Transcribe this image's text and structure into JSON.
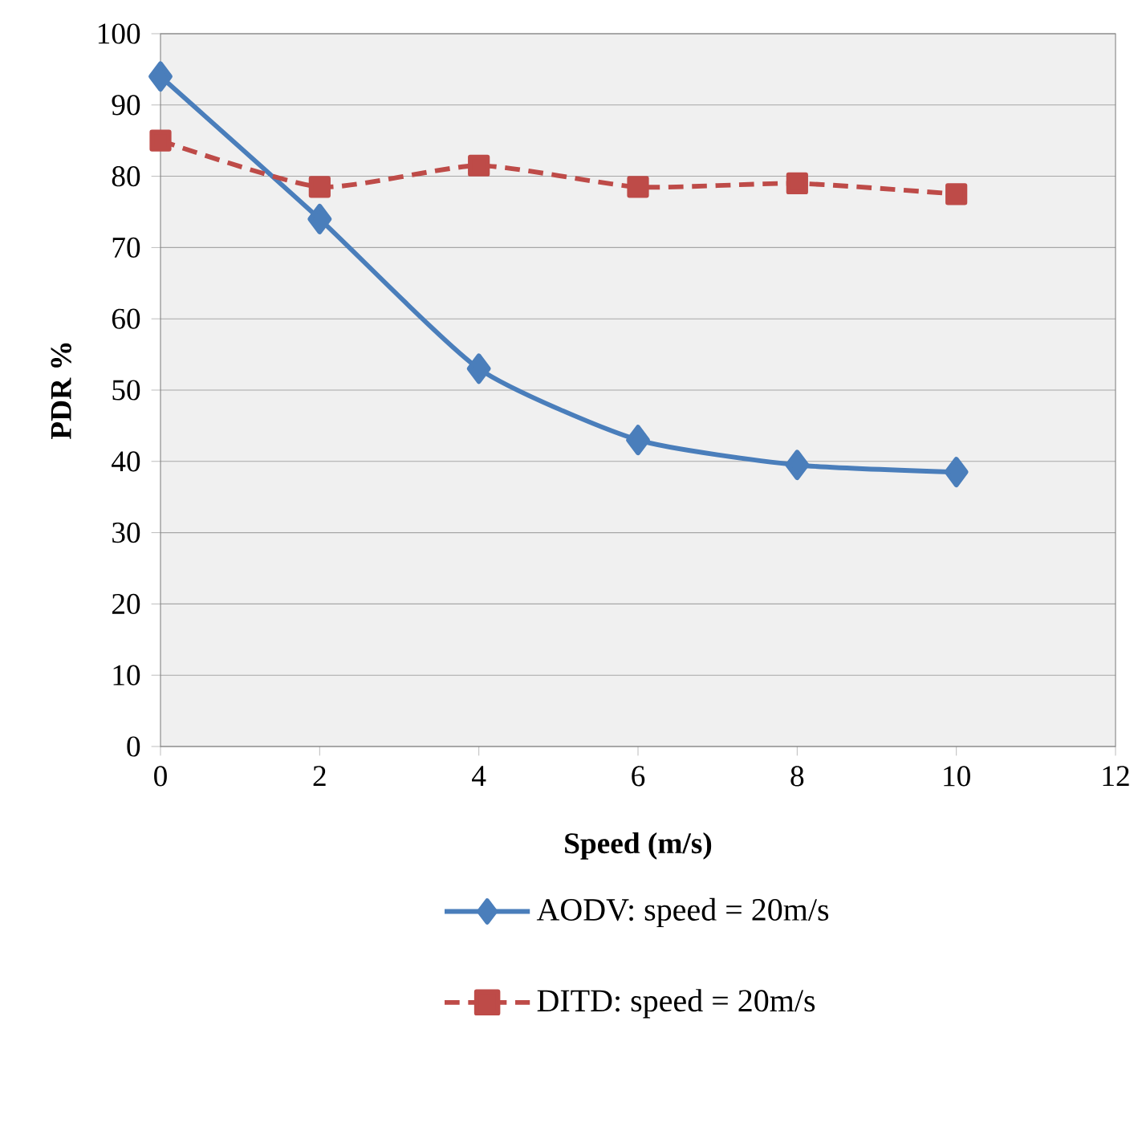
{
  "chart_data": {
    "type": "line",
    "xlabel": "Speed (m/s)",
    "ylabel": "PDR %",
    "x": [
      0,
      2,
      4,
      6,
      8,
      10
    ],
    "series": [
      {
        "name": "AODV: speed = 20m/s",
        "color": "#4a7ebb",
        "marker": "diamond",
        "line_style": "solid",
        "values": [
          94,
          74,
          53,
          43,
          39.5,
          38.5
        ]
      },
      {
        "name": "DITD: speed = 20m/s",
        "color": "#be4b48",
        "marker": "square",
        "line_style": "dashed",
        "values": [
          85,
          78.5,
          81.5,
          78.5,
          79,
          77.5
        ]
      }
    ],
    "xlim": [
      0,
      12
    ],
    "xticks": [
      0,
      2,
      4,
      6,
      8,
      10,
      12
    ],
    "ylim": [
      0,
      100
    ],
    "yticks": [
      0,
      10,
      20,
      30,
      40,
      50,
      60,
      70,
      80,
      90,
      100
    ],
    "grid": "y",
    "legend": "bottom"
  }
}
